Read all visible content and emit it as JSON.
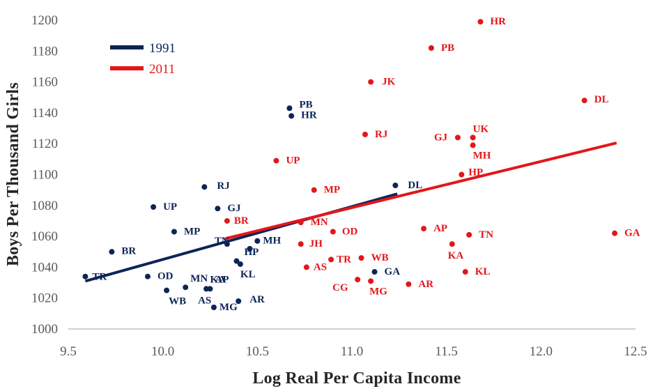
{
  "chart_data": {
    "type": "scatter",
    "title": "",
    "xlabel": "Log Real Per Capita Income",
    "ylabel": "Boys Per Thousand Girls",
    "xlim": [
      9.5,
      12.5
    ],
    "ylim": [
      1000,
      1200
    ],
    "xticks": [
      "9.5",
      "10.0",
      "10.5",
      "11.0",
      "11.5",
      "12.0",
      "12.5"
    ],
    "yticks": [
      "1000",
      "1020",
      "1040",
      "1060",
      "1080",
      "1100",
      "1120",
      "1140",
      "1160",
      "1180",
      "1200"
    ],
    "grid": false,
    "legend_position": "top-left",
    "series": [
      {
        "name": "1991",
        "color": "#0d2457",
        "trend": {
          "x": [
            9.59,
            11.24
          ],
          "y": [
            1031,
            1087.5
          ]
        },
        "points": [
          {
            "label": "TR",
            "x": 9.59,
            "y": 1034
          },
          {
            "label": "BR",
            "x": 9.73,
            "y": 1050
          },
          {
            "label": "UP",
            "x": 9.95,
            "y": 1079
          },
          {
            "label": "OD",
            "x": 9.92,
            "y": 1034
          },
          {
            "label": "WB",
            "x": 10.02,
            "y": 1025
          },
          {
            "label": "MN",
            "x": 10.12,
            "y": 1027
          },
          {
            "label": "MP",
            "x": 10.06,
            "y": 1063
          },
          {
            "label": "AS",
            "x": 10.23,
            "y": 1026
          },
          {
            "label": "AP",
            "x": 10.25,
            "y": 1026
          },
          {
            "label": "MG",
            "x": 10.27,
            "y": 1014
          },
          {
            "label": "RJ",
            "x": 10.22,
            "y": 1092
          },
          {
            "label": "GJ",
            "x": 10.29,
            "y": 1078
          },
          {
            "label": "TN",
            "x": 10.34,
            "y": 1055
          },
          {
            "label": "KA",
            "x": 10.39,
            "y": 1044
          },
          {
            "label": "KL",
            "x": 10.41,
            "y": 1042
          },
          {
            "label": "AR",
            "x": 10.4,
            "y": 1018
          },
          {
            "label": "HP",
            "x": 10.46,
            "y": 1052
          },
          {
            "label": "MH",
            "x": 10.5,
            "y": 1057
          },
          {
            "label": "PB",
            "x": 10.67,
            "y": 1143
          },
          {
            "label": "HR",
            "x": 10.68,
            "y": 1138
          },
          {
            "label": "GA",
            "x": 11.12,
            "y": 1037
          },
          {
            "label": "DL",
            "x": 11.23,
            "y": 1093
          }
        ]
      },
      {
        "name": "2011",
        "color": "#e3161b",
        "trend": {
          "x": [
            10.33,
            12.4
          ],
          "y": [
            1058.5,
            1120.5
          ]
        },
        "points": [
          {
            "label": "BR",
            "x": 10.34,
            "y": 1070
          },
          {
            "label": "UP",
            "x": 10.6,
            "y": 1109
          },
          {
            "label": "MP",
            "x": 10.8,
            "y": 1090
          },
          {
            "label": "MN",
            "x": 10.73,
            "y": 1069
          },
          {
            "label": "JH",
            "x": 10.73,
            "y": 1055
          },
          {
            "label": "AS",
            "x": 10.76,
            "y": 1040
          },
          {
            "label": "OD",
            "x": 10.9,
            "y": 1063
          },
          {
            "label": "TR",
            "x": 10.89,
            "y": 1045
          },
          {
            "label": "CG",
            "x": 11.03,
            "y": 1032
          },
          {
            "label": "WB",
            "x": 11.05,
            "y": 1046
          },
          {
            "label": "MG",
            "x": 11.1,
            "y": 1031
          },
          {
            "label": "RJ",
            "x": 11.07,
            "y": 1126
          },
          {
            "label": "JK",
            "x": 11.1,
            "y": 1160
          },
          {
            "label": "AR",
            "x": 11.3,
            "y": 1029
          },
          {
            "label": "AP",
            "x": 11.38,
            "y": 1065
          },
          {
            "label": "PB",
            "x": 11.42,
            "y": 1182
          },
          {
            "label": "KA",
            "x": 11.53,
            "y": 1055
          },
          {
            "label": "GJ",
            "x": 11.56,
            "y": 1124
          },
          {
            "label": "HP",
            "x": 11.58,
            "y": 1100
          },
          {
            "label": "KL",
            "x": 11.6,
            "y": 1037
          },
          {
            "label": "TN",
            "x": 11.62,
            "y": 1061
          },
          {
            "label": "MH",
            "x": 11.64,
            "y": 1119
          },
          {
            "label": "UK",
            "x": 11.64,
            "y": 1124
          },
          {
            "label": "HR",
            "x": 11.68,
            "y": 1199
          },
          {
            "label": "DL",
            "x": 12.23,
            "y": 1148
          },
          {
            "label": "GA",
            "x": 12.39,
            "y": 1062
          }
        ]
      }
    ]
  }
}
